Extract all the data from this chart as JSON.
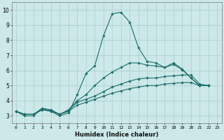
{
  "xlabel": "Humidex (Indice chaleur)",
  "ylabel": "",
  "xlim": [
    -0.5,
    23.5
  ],
  "ylim": [
    2.5,
    10.5
  ],
  "xticks": [
    0,
    1,
    2,
    3,
    4,
    5,
    6,
    7,
    8,
    9,
    10,
    11,
    12,
    13,
    14,
    15,
    16,
    17,
    18,
    19,
    20,
    21,
    22,
    23
  ],
  "yticks": [
    3,
    4,
    5,
    6,
    7,
    8,
    9,
    10
  ],
  "background_color": "#cce8e8",
  "line_color": "#1a6e6a",
  "grid_color": "#aacccc",
  "series": [
    [
      3.3,
      3.0,
      3.0,
      3.5,
      3.3,
      3.0,
      3.2,
      4.4,
      5.8,
      6.3,
      8.3,
      9.75,
      9.85,
      9.2,
      7.5,
      6.6,
      6.5,
      6.2,
      6.5,
      6.1,
      5.5,
      5.0,
      5.0
    ],
    [
      3.3,
      3.1,
      3.1,
      3.5,
      3.4,
      3.1,
      3.4,
      4.0,
      4.4,
      5.0,
      5.5,
      5.9,
      6.2,
      6.5,
      6.5,
      6.35,
      6.3,
      6.2,
      6.4,
      6.05,
      5.5,
      5.0,
      5.0
    ],
    [
      3.3,
      3.1,
      3.1,
      3.4,
      3.35,
      3.1,
      3.35,
      3.9,
      4.1,
      4.3,
      4.6,
      4.9,
      5.1,
      5.3,
      5.45,
      5.5,
      5.5,
      5.6,
      5.65,
      5.7,
      5.7,
      5.1,
      5.0
    ],
    [
      3.3,
      3.1,
      3.1,
      3.4,
      3.3,
      3.1,
      3.3,
      3.7,
      3.9,
      4.1,
      4.3,
      4.5,
      4.65,
      4.8,
      4.9,
      5.0,
      5.0,
      5.1,
      5.15,
      5.2,
      5.2,
      5.0,
      5.0
    ]
  ]
}
